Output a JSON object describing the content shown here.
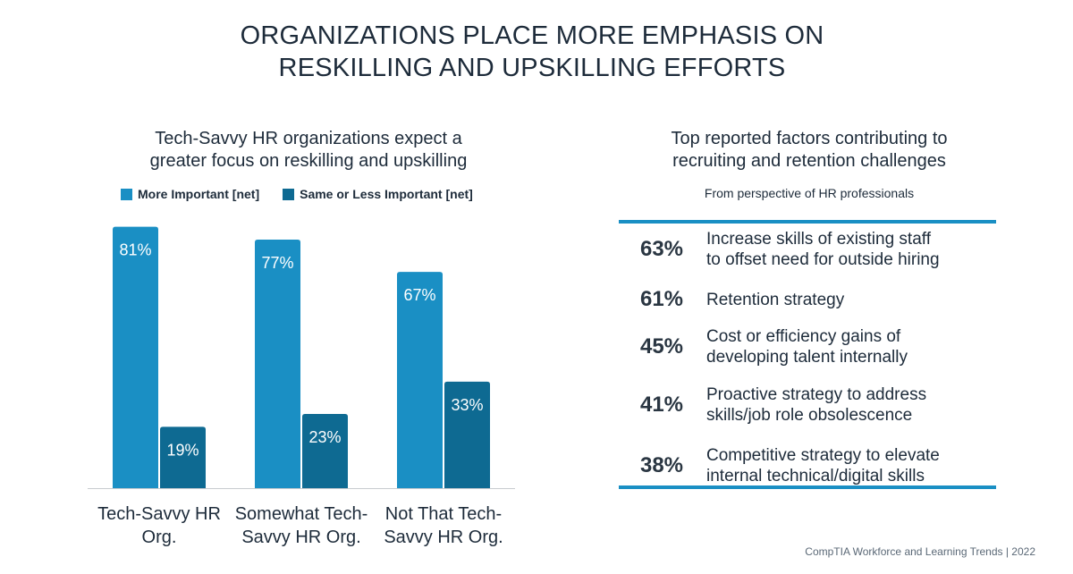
{
  "header": {
    "title_line1": "ORGANIZATIONS PLACE MORE EMPHASIS ON",
    "title_line2": "RESKILLING AND UPSKILLING EFFORTS"
  },
  "left_panel": {
    "subtitle_line1": "Tech-Savvy HR organizations expect a",
    "subtitle_line2": "greater focus on reskilling and upskilling"
  },
  "chart_data": {
    "type": "bar",
    "title": "Tech-Savvy HR organizations expect a greater focus on reskilling and upskilling",
    "categories": [
      [
        "Tech-Savvy HR",
        "Org."
      ],
      [
        "Somewhat Tech-",
        "Savvy HR Org."
      ],
      [
        "Not That Tech-",
        "Savvy HR Org."
      ]
    ],
    "series": [
      {
        "name": "More Important [net]",
        "color": "#1a8fc4",
        "values": [
          81,
          77,
          67
        ],
        "labels": [
          "81%",
          "77%",
          "67%"
        ]
      },
      {
        "name": "Same or Less Important [net]",
        "color": "#0e6a92",
        "values": [
          19,
          23,
          33
        ],
        "labels": [
          "19%",
          "23%",
          "33%"
        ]
      }
    ],
    "ylim": [
      0,
      100
    ],
    "grid": false,
    "legend_position": "top"
  },
  "right_panel": {
    "subtitle_line1": "Top reported factors contributing to",
    "subtitle_line2": "recruiting and retention challenges",
    "note": "From perspective of HR professionals",
    "accent_color": "#1a8fc4",
    "factors": [
      {
        "pct": "63%",
        "line1": "Increase skills of existing staff",
        "line2": "to offset need for outside hiring"
      },
      {
        "pct": "61%",
        "line1": "Retention strategy",
        "line2": ""
      },
      {
        "pct": "45%",
        "line1": "Cost or efficiency gains of",
        "line2": "developing talent internally"
      },
      {
        "pct": "41%",
        "line1": "Proactive strategy to address",
        "line2": "skills/job role obsolescence"
      },
      {
        "pct": "38%",
        "line1": "Competitive strategy to elevate",
        "line2": "internal technical/digital skills"
      }
    ]
  },
  "footer": {
    "source": "CompTIA Workforce and Learning Trends | 2022"
  }
}
